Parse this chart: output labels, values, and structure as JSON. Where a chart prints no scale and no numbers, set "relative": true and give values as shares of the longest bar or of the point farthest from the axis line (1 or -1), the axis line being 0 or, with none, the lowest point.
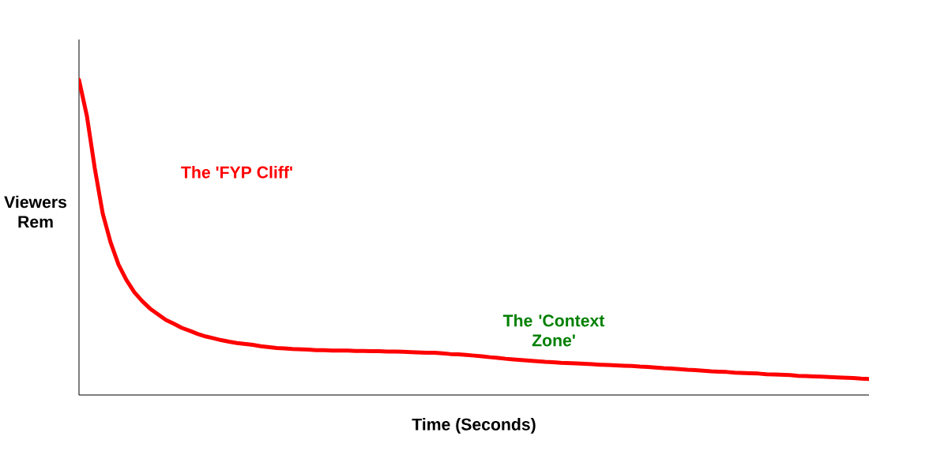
{
  "chart_data": {
    "type": "line",
    "relative": true,
    "xlabel": "Time (Seconds)",
    "ylabel": "Viewers Rem",
    "annotations": [
      "The 'FYP Cliff'",
      "The 'Context Zone'"
    ],
    "categories": [
      null,
      null,
      null,
      null,
      null,
      null,
      null,
      null,
      null,
      null,
      null,
      null,
      null,
      null,
      null,
      null,
      null,
      null,
      null,
      null,
      null,
      null,
      null,
      null,
      null,
      null,
      null,
      null,
      null,
      null,
      null,
      null,
      null,
      null,
      null,
      null,
      null,
      null,
      null,
      null,
      null,
      null,
      null,
      null,
      null,
      null,
      null,
      null,
      null,
      null,
      null,
      null,
      null,
      null,
      null,
      null,
      null,
      null,
      null,
      null,
      null,
      null,
      null,
      null,
      null,
      null,
      null,
      null,
      null,
      null,
      null,
      null,
      null,
      null,
      null,
      null,
      null,
      null,
      null,
      null,
      null,
      null,
      null,
      null,
      null,
      null,
      null,
      null,
      null,
      null,
      null,
      null,
      null,
      null,
      null,
      null,
      null,
      null,
      null,
      null,
      null
    ],
    "series": [
      {
        "color": "#ff0000",
        "values": [
          1.0,
          0.885,
          0.719,
          0.576,
          0.484,
          0.414,
          0.365,
          0.326,
          0.298,
          0.274,
          0.256,
          0.238,
          0.226,
          0.213,
          0.204,
          0.194,
          0.186,
          0.18,
          0.174,
          0.169,
          0.165,
          0.162,
          0.159,
          0.155,
          0.152,
          0.149,
          0.148,
          0.146,
          0.145,
          0.144,
          0.142,
          0.142,
          0.141,
          0.141,
          0.141,
          0.14,
          0.14,
          0.139,
          0.139,
          0.138,
          0.138,
          0.137,
          0.136,
          0.135,
          0.134,
          0.134,
          0.132,
          0.13,
          0.129,
          0.127,
          0.125,
          0.123,
          0.12,
          0.118,
          0.115,
          0.113,
          0.111,
          0.109,
          0.107,
          0.105,
          0.104,
          0.102,
          0.101,
          0.1,
          0.099,
          0.098,
          0.096,
          0.095,
          0.094,
          0.093,
          0.092,
          0.09,
          0.089,
          0.087,
          0.085,
          0.084,
          0.082,
          0.08,
          0.079,
          0.077,
          0.075,
          0.074,
          0.073,
          0.071,
          0.07,
          0.069,
          0.068,
          0.066,
          0.065,
          0.064,
          0.063,
          0.061,
          0.06,
          0.059,
          0.058,
          0.057,
          0.056,
          0.055,
          0.054,
          0.052,
          0.051
        ]
      }
    ]
  }
}
